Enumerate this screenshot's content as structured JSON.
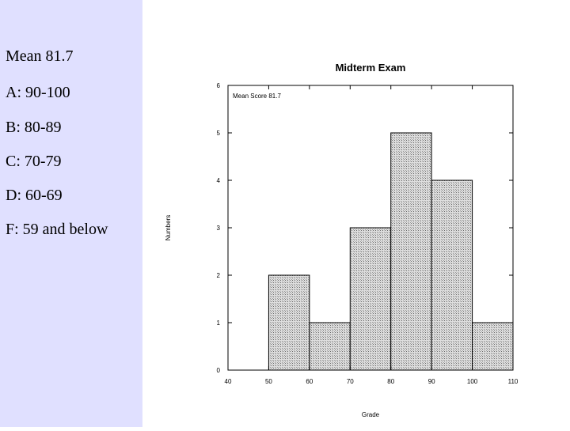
{
  "sidebar": {
    "background": "#e0e0ff",
    "lines": [
      "Mean 81.7",
      "A: 90-100",
      "B: 80-89",
      "C: 70-79",
      "D: 60-69",
      "F: 59 and below"
    ]
  },
  "chart_data": {
    "type": "bar",
    "title": "Midterm Exam",
    "annotation": "Mean Score 81.7",
    "xlabel": "Grade",
    "ylabel": "Numbers",
    "bins": [
      {
        "start": 50,
        "end": 60,
        "value": 2
      },
      {
        "start": 60,
        "end": 70,
        "value": 1
      },
      {
        "start": 70,
        "end": 80,
        "value": 3
      },
      {
        "start": 80,
        "end": 90,
        "value": 5
      },
      {
        "start": 90,
        "end": 100,
        "value": 4
      },
      {
        "start": 100,
        "end": 110,
        "value": 1
      }
    ],
    "xlim": [
      40,
      110
    ],
    "ylim": [
      0,
      6
    ],
    "xticks": [
      40,
      50,
      60,
      70,
      80,
      90,
      100,
      110
    ],
    "yticks": [
      0,
      1,
      2,
      3,
      4,
      5,
      6
    ],
    "grid": false,
    "bar_fill": "hatched gray"
  }
}
